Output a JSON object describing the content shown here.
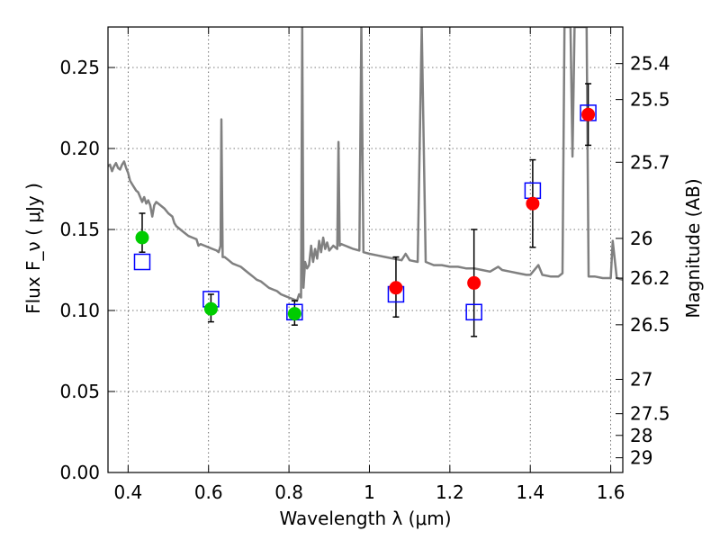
{
  "chart_data": {
    "type": "scatter",
    "title": "",
    "xlabel": "Wavelength  λ (μm)",
    "ylabel": "Flux  F_ν  ( μJy )",
    "ylabel_right": "Magnitude (AB)",
    "xlim": [
      0.35,
      1.63
    ],
    "ylim": [
      0.0,
      0.275
    ],
    "grid": true,
    "colors": {
      "model": "#808080",
      "green_points": "#00cc00",
      "red_points": "#ff0000",
      "model_boxes": "#0000ff",
      "errorbars": "#000000"
    },
    "x_ticks": [
      {
        "value": 0.4,
        "label": "0.4"
      },
      {
        "value": 0.6,
        "label": "0.6"
      },
      {
        "value": 0.8,
        "label": "0.8"
      },
      {
        "value": 1.0,
        "label": "1"
      },
      {
        "value": 1.2,
        "label": "1.2"
      },
      {
        "value": 1.4,
        "label": "1.4"
      },
      {
        "value": 1.6,
        "label": "1.6"
      }
    ],
    "y_ticks": [
      {
        "value": 0.0,
        "label": "0.00"
      },
      {
        "value": 0.05,
        "label": "0.05"
      },
      {
        "value": 0.1,
        "label": "0.10"
      },
      {
        "value": 0.15,
        "label": "0.15"
      },
      {
        "value": 0.2,
        "label": "0.20"
      },
      {
        "value": 0.25,
        "label": "0.25"
      }
    ],
    "right_ticks": [
      {
        "flux": 0.2524,
        "label": "25.4"
      },
      {
        "flux": 0.2302,
        "label": "25.5"
      },
      {
        "flux": 0.1915,
        "label": "25.7"
      },
      {
        "flux": 0.1445,
        "label": "26"
      },
      {
        "flux": 0.12,
        "label": "26.2"
      },
      {
        "flux": 0.0912,
        "label": "26.5"
      },
      {
        "flux": 0.0575,
        "label": "27"
      },
      {
        "flux": 0.0363,
        "label": "27.5"
      },
      {
        "flux": 0.0229,
        "label": "28"
      },
      {
        "flux": 0.0091,
        "label": "29"
      }
    ],
    "observed_green": [
      {
        "x": 0.435,
        "y": 0.145,
        "yerr_low": 0.136,
        "yerr_high": 0.16
      },
      {
        "x": 0.606,
        "y": 0.101,
        "yerr_low": 0.093,
        "yerr_high": 0.11
      },
      {
        "x": 0.814,
        "y": 0.098,
        "yerr_low": 0.091,
        "yerr_high": 0.106
      }
    ],
    "observed_red": [
      {
        "x": 1.066,
        "y": 0.114,
        "yerr_low": 0.096,
        "yerr_high": 0.133
      },
      {
        "x": 1.26,
        "y": 0.117,
        "yerr_low": 0.084,
        "yerr_high": 0.15
      },
      {
        "x": 1.406,
        "y": 0.166,
        "yerr_low": 0.139,
        "yerr_high": 0.193
      },
      {
        "x": 1.544,
        "y": 0.221,
        "yerr_low": 0.202,
        "yerr_high": 0.24
      }
    ],
    "model_photometry": [
      {
        "x": 0.435,
        "y": 0.13
      },
      {
        "x": 0.606,
        "y": 0.107
      },
      {
        "x": 0.814,
        "y": 0.099
      },
      {
        "x": 1.066,
        "y": 0.11
      },
      {
        "x": 1.26,
        "y": 0.099
      },
      {
        "x": 1.406,
        "y": 0.174
      },
      {
        "x": 1.544,
        "y": 0.222
      }
    ],
    "model_spectrum": [
      [
        0.35,
        0.189
      ],
      [
        0.355,
        0.19
      ],
      [
        0.36,
        0.186
      ],
      [
        0.365,
        0.189
      ],
      [
        0.37,
        0.191
      ],
      [
        0.375,
        0.188
      ],
      [
        0.38,
        0.187
      ],
      [
        0.385,
        0.19
      ],
      [
        0.39,
        0.192
      ],
      [
        0.395,
        0.188
      ],
      [
        0.4,
        0.185
      ],
      [
        0.405,
        0.18
      ],
      [
        0.41,
        0.178
      ],
      [
        0.415,
        0.176
      ],
      [
        0.42,
        0.174
      ],
      [
        0.425,
        0.173
      ],
      [
        0.43,
        0.17
      ],
      [
        0.435,
        0.167
      ],
      [
        0.44,
        0.17
      ],
      [
        0.445,
        0.166
      ],
      [
        0.45,
        0.168
      ],
      [
        0.455,
        0.165
      ],
      [
        0.46,
        0.158
      ],
      [
        0.465,
        0.165
      ],
      [
        0.47,
        0.167
      ],
      [
        0.48,
        0.165
      ],
      [
        0.49,
        0.163
      ],
      [
        0.5,
        0.16
      ],
      [
        0.51,
        0.158
      ],
      [
        0.515,
        0.154
      ],
      [
        0.52,
        0.152
      ],
      [
        0.53,
        0.15
      ],
      [
        0.54,
        0.148
      ],
      [
        0.55,
        0.146
      ],
      [
        0.56,
        0.145
      ],
      [
        0.57,
        0.144
      ],
      [
        0.575,
        0.14
      ],
      [
        0.58,
        0.141
      ],
      [
        0.59,
        0.14
      ],
      [
        0.6,
        0.139
      ],
      [
        0.61,
        0.138
      ],
      [
        0.62,
        0.137
      ],
      [
        0.625,
        0.136
      ],
      [
        0.63,
        0.14
      ],
      [
        0.632,
        0.218
      ],
      [
        0.635,
        0.133
      ],
      [
        0.64,
        0.133
      ],
      [
        0.65,
        0.131
      ],
      [
        0.66,
        0.129
      ],
      [
        0.67,
        0.128
      ],
      [
        0.68,
        0.127
      ],
      [
        0.69,
        0.125
      ],
      [
        0.7,
        0.123
      ],
      [
        0.71,
        0.121
      ],
      [
        0.72,
        0.119
      ],
      [
        0.73,
        0.118
      ],
      [
        0.74,
        0.116
      ],
      [
        0.75,
        0.114
      ],
      [
        0.76,
        0.113
      ],
      [
        0.77,
        0.112
      ],
      [
        0.78,
        0.11
      ],
      [
        0.79,
        0.109
      ],
      [
        0.8,
        0.108
      ],
      [
        0.81,
        0.107
      ],
      [
        0.82,
        0.106
      ],
      [
        0.825,
        0.11
      ],
      [
        0.83,
        0.108
      ],
      [
        0.833,
        0.275
      ],
      [
        0.836,
        0.114
      ],
      [
        0.84,
        0.13
      ],
      [
        0.845,
        0.126
      ],
      [
        0.85,
        0.128
      ],
      [
        0.855,
        0.14
      ],
      [
        0.86,
        0.13
      ],
      [
        0.865,
        0.138
      ],
      [
        0.87,
        0.132
      ],
      [
        0.875,
        0.143
      ],
      [
        0.88,
        0.136
      ],
      [
        0.885,
        0.145
      ],
      [
        0.89,
        0.138
      ],
      [
        0.895,
        0.142
      ],
      [
        0.9,
        0.137
      ],
      [
        0.91,
        0.14
      ],
      [
        0.92,
        0.138
      ],
      [
        0.923,
        0.204
      ],
      [
        0.926,
        0.14
      ],
      [
        0.93,
        0.141
      ],
      [
        0.94,
        0.14
      ],
      [
        0.95,
        0.139
      ],
      [
        0.96,
        0.138
      ],
      [
        0.975,
        0.137
      ],
      [
        0.98,
        0.275
      ],
      [
        0.985,
        0.136
      ],
      [
        1.0,
        0.135
      ],
      [
        1.02,
        0.134
      ],
      [
        1.04,
        0.133
      ],
      [
        1.06,
        0.132
      ],
      [
        1.08,
        0.131
      ],
      [
        1.09,
        0.135
      ],
      [
        1.1,
        0.131
      ],
      [
        1.12,
        0.13
      ],
      [
        1.13,
        0.275
      ],
      [
        1.14,
        0.13
      ],
      [
        1.16,
        0.128
      ],
      [
        1.18,
        0.128
      ],
      [
        1.2,
        0.127
      ],
      [
        1.22,
        0.127
      ],
      [
        1.24,
        0.126
      ],
      [
        1.26,
        0.126
      ],
      [
        1.28,
        0.125
      ],
      [
        1.3,
        0.124
      ],
      [
        1.32,
        0.127
      ],
      [
        1.33,
        0.125
      ],
      [
        1.35,
        0.124
      ],
      [
        1.37,
        0.123
      ],
      [
        1.39,
        0.122
      ],
      [
        1.4,
        0.122
      ],
      [
        1.42,
        0.128
      ],
      [
        1.43,
        0.122
      ],
      [
        1.45,
        0.121
      ],
      [
        1.47,
        0.121
      ],
      [
        1.48,
        0.123
      ],
      [
        1.485,
        0.275
      ],
      [
        1.5,
        0.275
      ],
      [
        1.505,
        0.195
      ],
      [
        1.51,
        0.275
      ],
      [
        1.54,
        0.275
      ],
      [
        1.545,
        0.121
      ],
      [
        1.56,
        0.121
      ],
      [
        1.58,
        0.12
      ],
      [
        1.6,
        0.12
      ],
      [
        1.605,
        0.143
      ],
      [
        1.615,
        0.12
      ],
      [
        1.63,
        0.119
      ]
    ]
  }
}
